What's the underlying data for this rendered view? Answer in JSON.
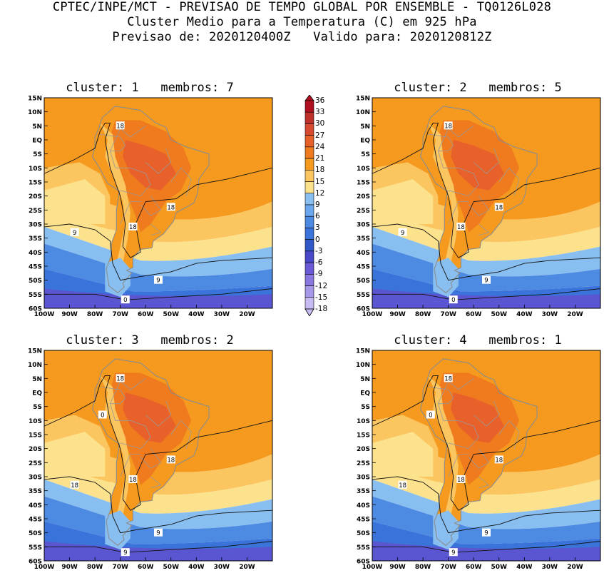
{
  "header": {
    "line1": "CPTEC/INPE/MCT - PREVISAO DE TEMPO GLOBAL POR ENSEMBLE - TQ0126L028",
    "line2": "Cluster Medio para a Temperatura (C) em 925 hPa",
    "line3": "Previsao de: 2020120400Z   Valido para: 2020120812Z"
  },
  "axes": {
    "lat_ticks": [
      "15N",
      "10N",
      "5N",
      "EQ",
      "5S",
      "10S",
      "15S",
      "20S",
      "25S",
      "30S",
      "35S",
      "40S",
      "45S",
      "50S",
      "55S",
      "60S"
    ],
    "lon_ticks": [
      "100W",
      "90W",
      "80W",
      "70W",
      "60W",
      "50W",
      "40W",
      "30W",
      "20W"
    ]
  },
  "colorbar": {
    "labels": [
      "36",
      "33",
      "30",
      "27",
      "24",
      "21",
      "18",
      "15",
      "12",
      "9",
      "6",
      "3",
      "0",
      "-3",
      "-6",
      "-9",
      "-12",
      "-15",
      "-18"
    ],
    "colors": [
      "#b01020",
      "#c0302a",
      "#d84a30",
      "#e8602a",
      "#f07a1e",
      "#f59a1e",
      "#fbc560",
      "#fde28e",
      "#88bff0",
      "#6aa7ee",
      "#4d8ae2",
      "#3a73da",
      "#3058c8",
      "#4848c8",
      "#6a5ad8",
      "#8a78e0",
      "#a898ea",
      "#c8baf2"
    ]
  },
  "panels": [
    {
      "title": "cluster: 1   membros: 7",
      "contour_labels": [
        "18",
        "18",
        "18",
        "9",
        "9",
        "0"
      ]
    },
    {
      "title": "cluster: 2   membros: 5",
      "contour_labels": [
        "18",
        "18",
        "18",
        "9",
        "9",
        "0"
      ]
    },
    {
      "title": "cluster: 3   membros: 2",
      "contour_labels": [
        "18",
        "18",
        "18",
        "18",
        "9",
        "9",
        "0"
      ]
    },
    {
      "title": "cluster: 4   membros: 1",
      "contour_labels": [
        "18",
        "18",
        "18",
        "18",
        "9",
        "9",
        "0"
      ]
    }
  ]
}
